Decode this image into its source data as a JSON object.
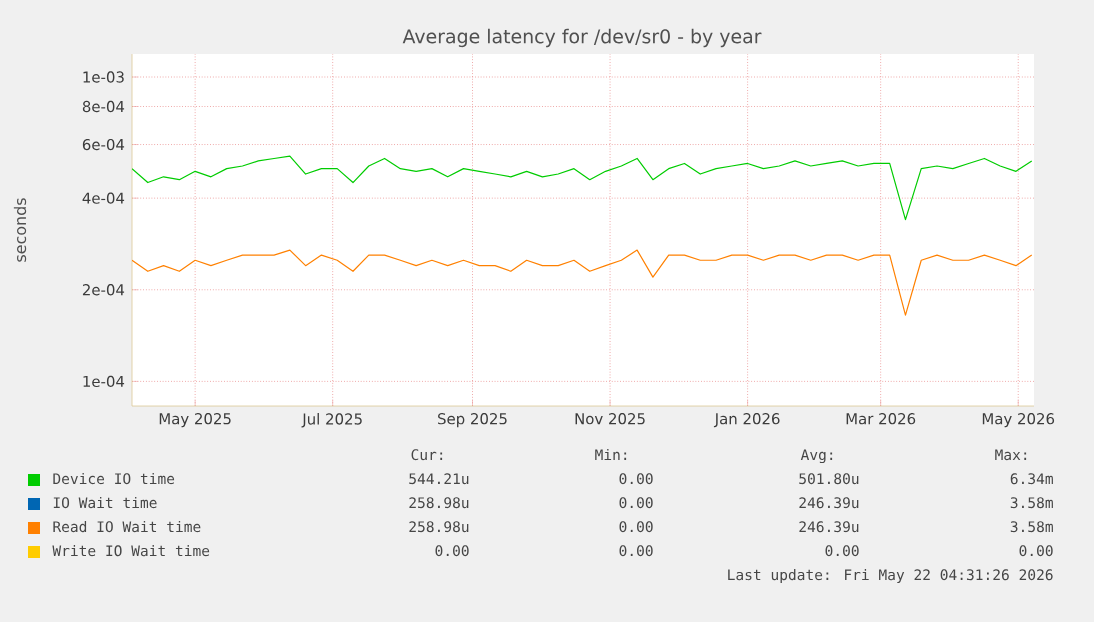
{
  "chart_data": {
    "type": "line",
    "title": "Average latency for /dev/sr0 - by year",
    "ylabel": "seconds",
    "log": "y",
    "grid": true,
    "legend": "bottom",
    "x": [
      "2025-04-03",
      "2025-04-10",
      "2025-04-17",
      "2025-04-24",
      "2025-05-01",
      "2025-05-08",
      "2025-05-15",
      "2025-05-22",
      "2025-05-29",
      "2025-06-05",
      "2025-06-12",
      "2025-06-19",
      "2025-06-26",
      "2025-07-03",
      "2025-07-10",
      "2025-07-17",
      "2025-07-24",
      "2025-07-31",
      "2025-08-07",
      "2025-08-14",
      "2025-08-21",
      "2025-08-28",
      "2025-09-04",
      "2025-09-11",
      "2025-09-18",
      "2025-09-25",
      "2025-10-02",
      "2025-10-09",
      "2025-10-16",
      "2025-10-23",
      "2025-10-30",
      "2025-11-06",
      "2025-11-13",
      "2025-11-20",
      "2025-11-27",
      "2025-12-04",
      "2025-12-11",
      "2025-12-18",
      "2025-12-25",
      "2026-01-01",
      "2026-01-08",
      "2026-01-15",
      "2026-01-22",
      "2026-01-29",
      "2026-02-05",
      "2026-02-12",
      "2026-02-19",
      "2026-02-26",
      "2026-03-05",
      "2026-03-12",
      "2026-03-19",
      "2026-03-26",
      "2026-04-02",
      "2026-04-09",
      "2026-04-16",
      "2026-04-23",
      "2026-04-30",
      "2026-05-07"
    ],
    "xlim": [
      "2025-04-03",
      "2026-05-08"
    ],
    "xticks": [
      {
        "value": "2025-05-01",
        "label": "May 2025"
      },
      {
        "value": "2025-07-01",
        "label": "Jul 2025"
      },
      {
        "value": "2025-09-01",
        "label": "Sep 2025"
      },
      {
        "value": "2025-11-01",
        "label": "Nov 2025"
      },
      {
        "value": "2026-01-01",
        "label": "Jan 2026"
      },
      {
        "value": "2026-03-01",
        "label": "Mar 2026"
      },
      {
        "value": "2026-05-01",
        "label": "May 2026"
      }
    ],
    "ylim": [
      8.3e-05,
      0.00119
    ],
    "yticks": [
      {
        "value": 0.0001,
        "label": "1e-04"
      },
      {
        "value": 0.0002,
        "label": "2e-04"
      },
      {
        "value": 0.0004,
        "label": "4e-04"
      },
      {
        "value": 0.0006,
        "label": "6e-04"
      },
      {
        "value": 0.0008,
        "label": "8e-04"
      },
      {
        "value": 0.001,
        "label": "1e-03"
      }
    ],
    "series": [
      {
        "name": "Device IO time",
        "color": "#00cc00",
        "values": [
          0.0005,
          0.00045,
          0.00047,
          0.00046,
          0.00049,
          0.00047,
          0.0005,
          0.00051,
          0.00053,
          0.00054,
          0.00055,
          0.00048,
          0.0005,
          0.0005,
          0.00045,
          0.00051,
          0.00054,
          0.0005,
          0.00049,
          0.0005,
          0.00047,
          0.0005,
          0.00049,
          0.00048,
          0.00047,
          0.00049,
          0.00047,
          0.00048,
          0.0005,
          0.00046,
          0.00049,
          0.00051,
          0.00054,
          0.00046,
          0.0005,
          0.00052,
          0.00048,
          0.0005,
          0.00051,
          0.00052,
          0.0005,
          0.00051,
          0.00053,
          0.00051,
          0.00052,
          0.00053,
          0.00051,
          0.00052,
          0.00052,
          0.00034,
          0.0005,
          0.00051,
          0.0005,
          0.00052,
          0.00054,
          0.00051,
          0.00049,
          0.00053
        ]
      },
      {
        "name": "IO Wait time",
        "color": "#0066b3",
        "values": [
          null,
          null,
          null,
          null,
          null,
          null,
          null,
          null,
          null,
          null,
          null,
          null,
          null,
          null,
          null,
          null,
          null,
          null,
          null,
          null,
          null,
          null,
          null,
          null,
          null,
          null,
          null,
          null,
          null,
          null,
          null,
          null,
          null,
          null,
          null,
          null,
          null,
          null,
          null,
          null,
          null,
          null,
          null,
          null,
          null,
          null,
          null,
          null,
          null,
          null,
          null,
          null,
          null,
          null,
          null,
          null,
          null,
          null
        ]
      },
      {
        "name": "Read IO Wait time",
        "color": "#ff8000",
        "values": [
          0.00025,
          0.00023,
          0.00024,
          0.00023,
          0.00025,
          0.00024,
          0.00025,
          0.00026,
          0.00026,
          0.00026,
          0.00027,
          0.00024,
          0.00026,
          0.00025,
          0.00023,
          0.00026,
          0.00026,
          0.00025,
          0.00024,
          0.00025,
          0.00024,
          0.00025,
          0.00024,
          0.00024,
          0.00023,
          0.00025,
          0.00024,
          0.00024,
          0.00025,
          0.00023,
          0.00024,
          0.00025,
          0.00027,
          0.00022,
          0.00026,
          0.00026,
          0.00025,
          0.00025,
          0.00026,
          0.00026,
          0.00025,
          0.00026,
          0.00026,
          0.00025,
          0.00026,
          0.00026,
          0.00025,
          0.00026,
          0.00026,
          0.000165,
          0.00025,
          0.00026,
          0.00025,
          0.00025,
          0.00026,
          0.00025,
          0.00024,
          0.00026
        ]
      },
      {
        "name": "Write IO Wait time",
        "color": "#ffcc00",
        "values": [
          null,
          null,
          null,
          null,
          null,
          null,
          null,
          null,
          null,
          null,
          null,
          null,
          null,
          null,
          null,
          null,
          null,
          null,
          null,
          null,
          null,
          null,
          null,
          null,
          null,
          null,
          null,
          null,
          null,
          null,
          null,
          null,
          null,
          null,
          null,
          null,
          null,
          null,
          null,
          null,
          null,
          null,
          null,
          null,
          null,
          null,
          null,
          null,
          null,
          null,
          null,
          null,
          null,
          null,
          null,
          null,
          null,
          null
        ]
      }
    ],
    "annotations": [
      "Cur:",
      "Min:",
      "Avg:",
      "Max:",
      "544.21u",
      "0.00",
      "501.80u",
      "6.34m",
      "258.98u",
      "0.00",
      "246.39u",
      "3.58m",
      "258.98u",
      "0.00",
      "246.39u",
      "3.58m",
      "0.00",
      "0.00",
      "0.00",
      "0.00",
      "Last update: Fri May 22 04:31:26 2026"
    ]
  }
}
